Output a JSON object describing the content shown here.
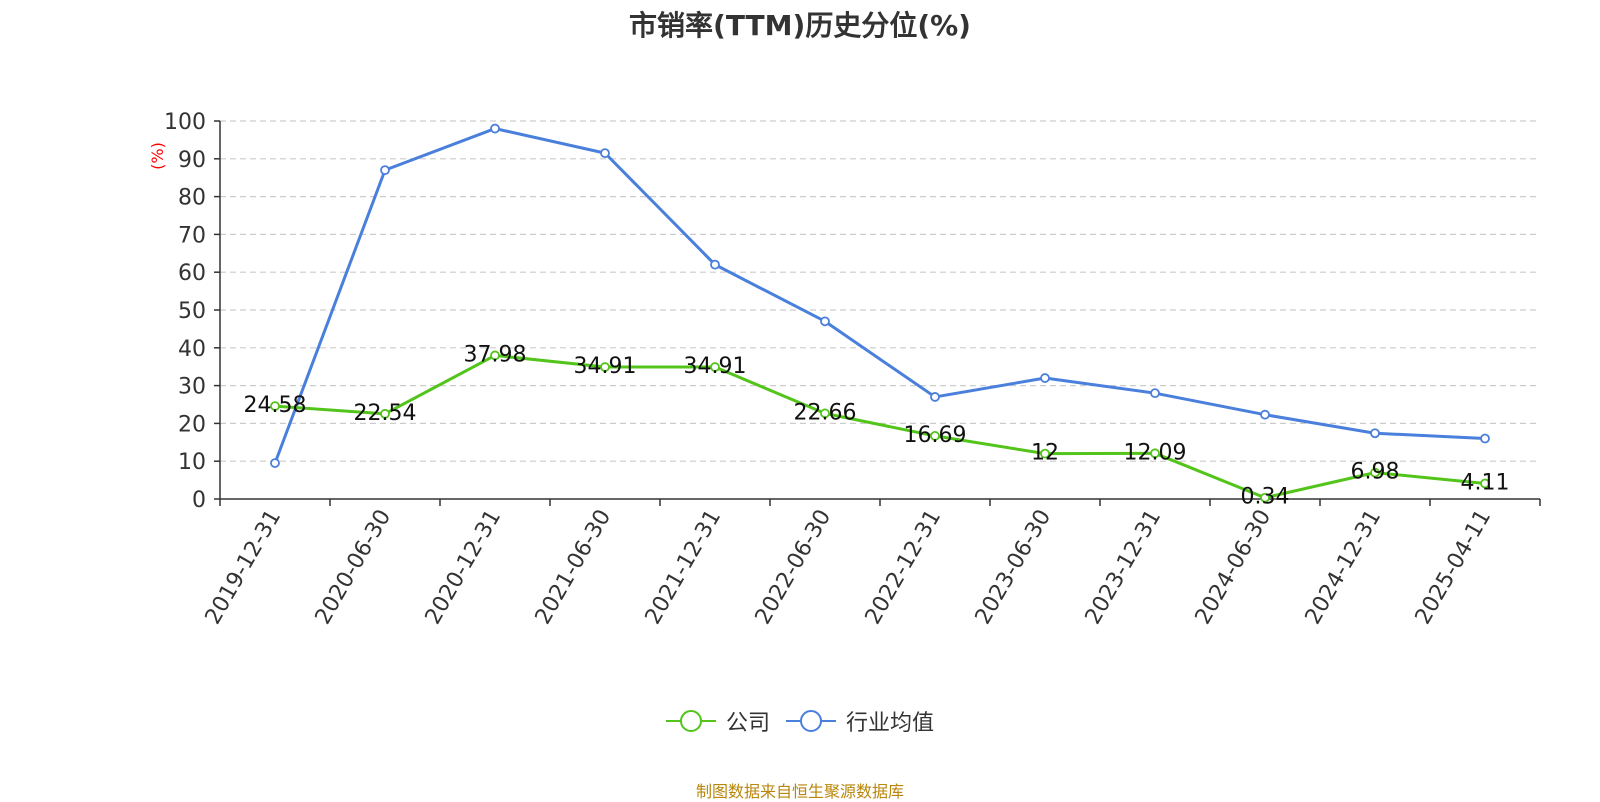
{
  "chart_data": {
    "type": "line",
    "title": "市销率(TTM)历史分位(%)",
    "ylabel": "(%)",
    "x": [
      "2019-12-31",
      "2020-06-30",
      "2020-12-31",
      "2021-06-30",
      "2021-12-31",
      "2022-06-30",
      "2022-12-31",
      "2023-06-30",
      "2023-12-31",
      "2024-06-30",
      "2024-12-31",
      "2025-04-11"
    ],
    "ylim": [
      0,
      100
    ],
    "yticks": [
      0,
      10,
      20,
      30,
      40,
      50,
      60,
      70,
      80,
      90,
      100
    ],
    "grid": true,
    "legend_position": "bottom-center",
    "series": [
      {
        "name": "公司",
        "color": "#52c41a",
        "values": [
          24.58,
          22.54,
          37.98,
          34.91,
          34.91,
          22.66,
          16.69,
          12,
          12.09,
          0.34,
          6.98,
          4.11
        ],
        "labels": [
          "24.58",
          "22.54",
          "37.98",
          "34.91",
          "34.91",
          "22.66",
          "16.69",
          "12",
          "12.09",
          "0.34",
          "6.98",
          "4.11"
        ]
      },
      {
        "name": "行业均值",
        "color": "#4a7fdc",
        "values": [
          9.5,
          87,
          98,
          91.5,
          62,
          47,
          27,
          32,
          28,
          22.3,
          17.4,
          16
        ]
      }
    ]
  },
  "source_note": "制图数据来自恒生聚源数据库",
  "colors": {
    "axis": "#333333",
    "grid": "#cccccc",
    "ylabel": "#ff0000",
    "source": "#b8860b"
  }
}
